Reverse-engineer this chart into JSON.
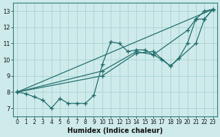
{
  "xlabel": "Humidex (Indice chaleur)",
  "background_color": "#ceeaea",
  "grid_color": "#aed4d4",
  "line_color": "#1e6b6b",
  "xlim": [
    -0.5,
    23.5
  ],
  "ylim": [
    6.5,
    13.5
  ],
  "xticks": [
    0,
    1,
    2,
    3,
    4,
    5,
    6,
    7,
    8,
    9,
    10,
    11,
    12,
    13,
    14,
    15,
    16,
    17,
    18,
    19,
    20,
    21,
    22,
    23
  ],
  "yticks": [
    7,
    8,
    9,
    10,
    11,
    12,
    13
  ],
  "line1_x": [
    0,
    1,
    2,
    3,
    4,
    5,
    6,
    7,
    8,
    9,
    10,
    11,
    12,
    13,
    14,
    15,
    16,
    17,
    18,
    19,
    20,
    21,
    22,
    23
  ],
  "line1_y": [
    8.0,
    7.9,
    7.7,
    7.5,
    7.0,
    7.6,
    7.3,
    7.3,
    7.3,
    7.8,
    9.7,
    11.1,
    11.0,
    10.5,
    10.6,
    10.6,
    10.3,
    10.0,
    9.6,
    10.1,
    11.0,
    12.5,
    13.0,
    13.1
  ],
  "line2_x": [
    0,
    23
  ],
  "line2_y": [
    8.0,
    13.1
  ],
  "line3_x": [
    0,
    10,
    14,
    16,
    20,
    21,
    22,
    23
  ],
  "line3_y": [
    8.0,
    9.3,
    10.5,
    10.3,
    11.8,
    12.5,
    12.5,
    13.1
  ],
  "line4_x": [
    0,
    10,
    14,
    16,
    18,
    21,
    22,
    23
  ],
  "line4_y": [
    8.0,
    9.0,
    10.4,
    10.5,
    9.6,
    11.0,
    12.5,
    13.1
  ]
}
